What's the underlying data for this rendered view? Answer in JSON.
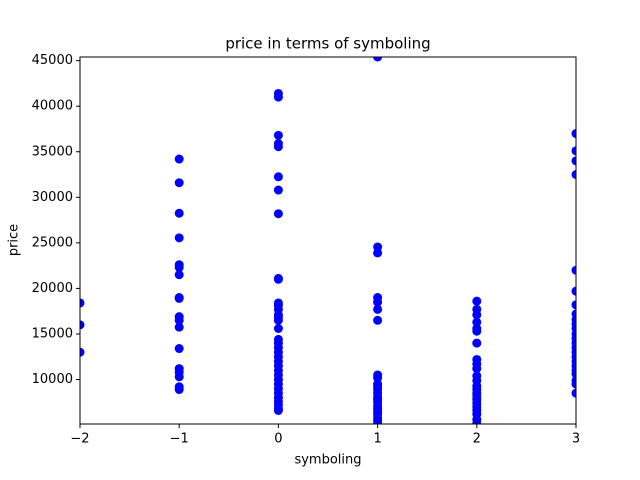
{
  "chart_data": {
    "type": "scatter",
    "title": "price in terms of symboling",
    "x_label": "symboling",
    "y_label": "price",
    "color": "#0000ff",
    "x": [
      -2,
      -2,
      -2,
      -1,
      -1,
      -1,
      -1,
      -1,
      -1,
      -1,
      -1,
      -1,
      -1,
      -1,
      -1,
      -1,
      -1,
      -1,
      -1,
      -1,
      -1,
      0,
      0,
      0,
      0,
      0,
      0,
      0,
      0,
      0,
      0,
      0,
      0,
      0,
      0,
      0,
      0,
      0,
      0,
      0,
      0,
      0,
      0,
      0,
      0,
      0,
      0,
      0,
      0,
      0,
      0,
      0,
      0,
      0,
      0,
      0,
      1,
      1,
      1,
      1,
      1,
      1,
      1,
      1,
      1,
      1,
      1,
      1,
      1,
      1,
      1,
      1,
      1,
      1,
      1,
      1,
      1,
      1,
      1,
      2,
      2,
      2,
      2,
      2,
      2,
      2,
      2,
      2,
      2,
      2,
      2,
      2,
      2,
      2,
      2,
      2,
      2,
      2,
      2,
      2,
      2,
      2,
      3,
      3,
      3,
      3,
      3,
      3,
      3,
      3,
      3,
      3,
      3,
      3,
      3,
      3,
      3,
      3,
      3,
      3,
      3,
      3,
      3,
      3,
      3,
      3
    ],
    "values": [
      18400,
      16000,
      13000,
      34200,
      31600,
      28250,
      25550,
      22600,
      22300,
      21500,
      19000,
      18900,
      16900,
      16500,
      15750,
      13400,
      11200,
      10800,
      10300,
      9200,
      8900,
      41400,
      41000,
      36800,
      35900,
      35550,
      32250,
      30800,
      28200,
      21100,
      21000,
      18400,
      18150,
      17700,
      17100,
      16800,
      16500,
      15600,
      14400,
      14000,
      13500,
      13000,
      12500,
      12000,
      11500,
      11000,
      10500,
      10000,
      9500,
      9000,
      8500,
      8000,
      7600,
      7200,
      6800,
      6600,
      45400,
      24550,
      23900,
      19000,
      18500,
      17700,
      16500,
      10500,
      10200,
      9500,
      9200,
      8900,
      8500,
      8100,
      7800,
      7500,
      7100,
      6800,
      6500,
      6200,
      5800,
      5500,
      5200,
      18600,
      17700,
      17100,
      16300,
      15600,
      15300,
      14000,
      12200,
      11700,
      11200,
      10400,
      9900,
      9300,
      8900,
      8500,
      8200,
      7800,
      7400,
      7000,
      6600,
      6200,
      5600,
      5150,
      37000,
      35100,
      34000,
      32500,
      22000,
      19700,
      18200,
      17200,
      16600,
      16100,
      15600,
      15000,
      14500,
      14000,
      13500,
      13000,
      12500,
      12000,
      11500,
      11000,
      10600,
      9900,
      9500,
      8500
    ],
    "xlim": [
      -2,
      3
    ],
    "ylim": [
      5118,
      45400
    ],
    "xticks": [
      {
        "value": -2,
        "label": "−2"
      },
      {
        "value": -1,
        "label": "−1"
      },
      0,
      1,
      2,
      3
    ],
    "yticks": [
      10000,
      15000,
      20000,
      25000,
      30000,
      35000,
      40000,
      45000
    ]
  }
}
